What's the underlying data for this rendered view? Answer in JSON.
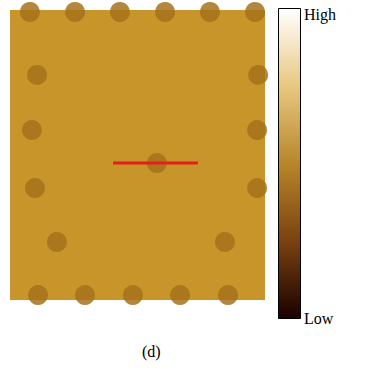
{
  "chart_data": {
    "type": "scatter",
    "tick_labels": false,
    "xlim": [
      0,
      100
    ],
    "ylim": [
      0,
      100
    ],
    "series": [
      {
        "type": "scatter",
        "color": "#a6721b",
        "x": [
          7.8,
          25.5,
          43.1,
          60.8,
          78.4,
          96.1,
          10.6,
          97.3,
          8.6,
          96.9,
          9.8,
          96.9,
          18.4,
          84.3,
          11.0,
          29.4,
          48.2,
          66.7,
          85.5,
          57.6
        ],
        "y": [
          99.3,
          99.3,
          99.3,
          99.3,
          99.3,
          99.3,
          77.6,
          77.6,
          58.6,
          58.6,
          38.6,
          38.6,
          20.0,
          20.0,
          1.7,
          1.7,
          1.7,
          1.7,
          1.7,
          47.2
        ]
      },
      {
        "type": "line",
        "color": "#e3201b",
        "x": [
          40.4,
          73.7
        ],
        "y": [
          47.2,
          47.2
        ]
      }
    ],
    "colorbar": {
      "high": "High",
      "low": "Low"
    },
    "caption": "(d)"
  }
}
